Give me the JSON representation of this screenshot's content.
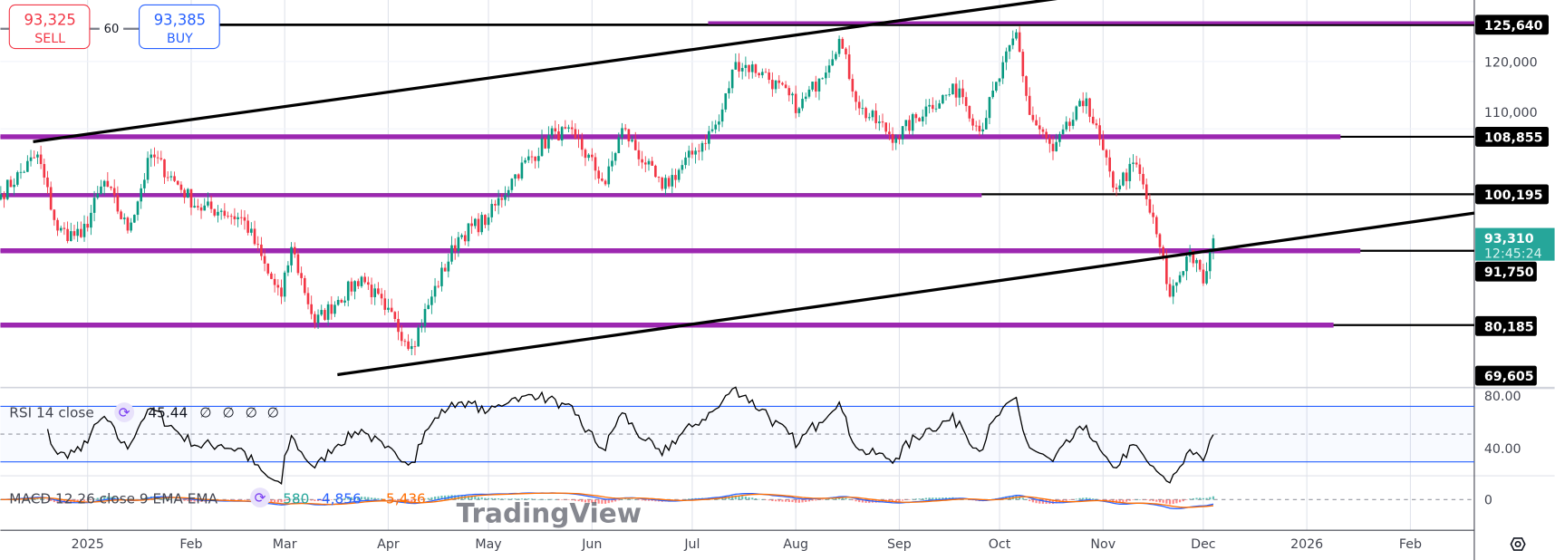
{
  "trade": {
    "sell_price": "93,325",
    "sell_label": "SELL",
    "spread": "60",
    "buy_price": "93,385",
    "buy_label": "BUY"
  },
  "colors": {
    "up": "#089981",
    "down": "#f23645",
    "level": "#9c27b0",
    "trendline": "#000000",
    "rsi_band": "#2962ff",
    "macd": "#2962ff",
    "signal": "#ff6d00",
    "last_price": "#26a69a"
  },
  "price_axis": {
    "ticks": [
      "120,000",
      "110,000"
    ],
    "level_labels": [
      "125,640",
      "108,855",
      "100,195",
      "91,750",
      "80,185",
      "69,605"
    ],
    "last_price": "93,310",
    "countdown": "12:45:24"
  },
  "rsi": {
    "title": "RSI 14 close",
    "value": "45.44",
    "na_values": [
      "∅",
      "∅",
      "∅",
      "∅"
    ],
    "ticks": [
      "80.00",
      "40.00"
    ],
    "upper": 70,
    "lower": 30,
    "middle": 50
  },
  "macd": {
    "title": "MACD 12 26 close 9 EMA EMA",
    "histogram": "580",
    "macd": "-4,856",
    "signal": "-5,436",
    "ticks": [
      "0"
    ]
  },
  "watermark": "TradingView",
  "time_axis": [
    "2025",
    "Feb",
    "Mar",
    "Apr",
    "May",
    "Jun",
    "Jul",
    "Aug",
    "Sep",
    "Oct",
    "Nov",
    "Dec",
    "2026",
    "Feb"
  ],
  "chart_data": {
    "type": "candlestick",
    "interval": "1D",
    "price_levels": [
      125640,
      108855,
      100195,
      91750,
      80185
    ],
    "ylim": [
      69605,
      130000
    ],
    "approx_closes": [
      [
        "2024-12-06",
        100000
      ],
      [
        "2024-12-17",
        106000
      ],
      [
        "2024-12-23",
        94500
      ],
      [
        "2024-12-30",
        93500
      ],
      [
        "2025-01-06",
        102000
      ],
      [
        "2025-01-13",
        94500
      ],
      [
        "2025-01-20",
        106000
      ],
      [
        "2025-01-27",
        102000
      ],
      [
        "2025-02-03",
        98000
      ],
      [
        "2025-02-10",
        97500
      ],
      [
        "2025-02-17",
        96000
      ],
      [
        "2025-02-24",
        88000
      ],
      [
        "2025-02-28",
        84500
      ],
      [
        "2025-03-03",
        92000
      ],
      [
        "2025-03-10",
        80500
      ],
      [
        "2025-03-17",
        84000
      ],
      [
        "2025-03-24",
        87500
      ],
      [
        "2025-03-31",
        82500
      ],
      [
        "2025-04-08",
        77000
      ],
      [
        "2025-04-14",
        84500
      ],
      [
        "2025-04-22",
        93500
      ],
      [
        "2025-05-01",
        96500
      ],
      [
        "2025-05-09",
        103000
      ],
      [
        "2025-05-21",
        109500
      ],
      [
        "2025-05-27",
        108500
      ],
      [
        "2025-06-05",
        101500
      ],
      [
        "2025-06-10",
        110000
      ],
      [
        "2025-06-17",
        104500
      ],
      [
        "2025-06-22",
        100800
      ],
      [
        "2025-07-01",
        106000
      ],
      [
        "2025-07-09",
        111000
      ],
      [
        "2025-07-14",
        120000
      ],
      [
        "2025-07-22",
        118500
      ],
      [
        "2025-08-02",
        113000
      ],
      [
        "2025-08-08",
        117500
      ],
      [
        "2025-08-14",
        123500
      ],
      [
        "2025-08-20",
        113000
      ],
      [
        "2025-08-31",
        108500
      ],
      [
        "2025-09-10",
        113500
      ],
      [
        "2025-09-19",
        116000
      ],
      [
        "2025-09-25",
        109500
      ],
      [
        "2025-10-06",
        124500
      ],
      [
        "2025-10-10",
        112000
      ],
      [
        "2025-10-17",
        106500
      ],
      [
        "2025-10-27",
        114500
      ],
      [
        "2025-11-04",
        101000
      ],
      [
        "2025-11-11",
        104500
      ],
      [
        "2025-11-18",
        92000
      ],
      [
        "2025-11-21",
        84500
      ],
      [
        "2025-11-27",
        91500
      ],
      [
        "2025-12-01",
        86500
      ],
      [
        "2025-12-04",
        93310
      ]
    ]
  }
}
